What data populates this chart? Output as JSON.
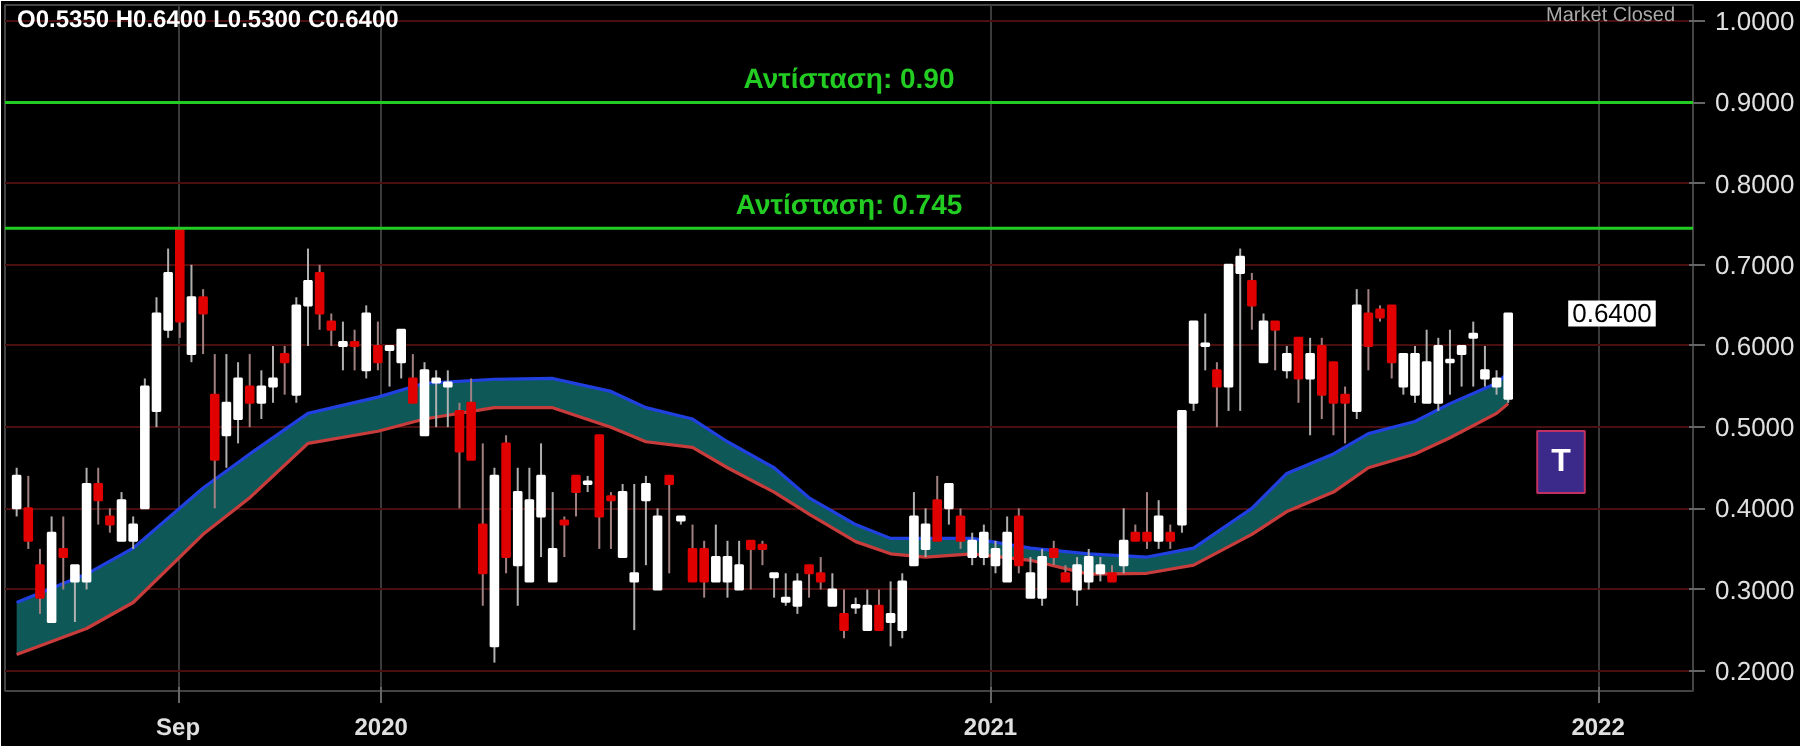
{
  "chart_data": {
    "type": "candlestick",
    "x": [
      "2019-05-27",
      "2019-06-03",
      "2019-06-10",
      "2019-06-17",
      "2019-06-24",
      "2019-07-01",
      "2019-07-08",
      "2019-07-15",
      "2019-07-22",
      "2019-07-29",
      "2019-08-05",
      "2019-08-12",
      "2019-08-19",
      "2019-08-26",
      "2019-09-02",
      "2019-09-09",
      "2019-09-16",
      "2019-09-23",
      "2019-09-30",
      "2019-10-07",
      "2019-10-14",
      "2019-10-21",
      "2019-10-28",
      "2019-11-04",
      "2019-11-11",
      "2019-11-18",
      "2019-11-25",
      "2019-12-02",
      "2019-12-09",
      "2019-12-16",
      "2019-12-23",
      "2019-12-30",
      "2020-01-06",
      "2020-01-13",
      "2020-01-20",
      "2020-01-27",
      "2020-02-03",
      "2020-02-10",
      "2020-02-17",
      "2020-02-24",
      "2020-03-02",
      "2020-03-09",
      "2020-03-16",
      "2020-03-23",
      "2020-03-30",
      "2020-04-06",
      "2020-04-13",
      "2020-04-20",
      "2020-04-27",
      "2020-05-04",
      "2020-05-11",
      "2020-05-18",
      "2020-05-25",
      "2020-06-01",
      "2020-06-08",
      "2020-06-15",
      "2020-06-22",
      "2020-06-29",
      "2020-07-06",
      "2020-07-13",
      "2020-07-20",
      "2020-07-27",
      "2020-08-03",
      "2020-08-10",
      "2020-08-17",
      "2020-08-24",
      "2020-08-31",
      "2020-09-07",
      "2020-09-14",
      "2020-09-21",
      "2020-09-28",
      "2020-10-05",
      "2020-10-12",
      "2020-10-19",
      "2020-10-26",
      "2020-11-02",
      "2020-11-09",
      "2020-11-16",
      "2020-11-23",
      "2020-11-30",
      "2020-12-07",
      "2020-12-14",
      "2020-12-21",
      "2020-12-28",
      "2021-01-04",
      "2021-01-11",
      "2021-01-18",
      "2021-01-25",
      "2021-02-01",
      "2021-02-08",
      "2021-02-15",
      "2021-02-22",
      "2021-03-01",
      "2021-03-08",
      "2021-03-15",
      "2021-03-22",
      "2021-03-29",
      "2021-04-05",
      "2021-04-12",
      "2021-04-19",
      "2021-04-26",
      "2021-05-03",
      "2021-05-10",
      "2021-05-17",
      "2021-05-24",
      "2021-05-31",
      "2021-06-07",
      "2021-06-14",
      "2021-06-21",
      "2021-06-28",
      "2021-07-05",
      "2021-07-12",
      "2021-07-19",
      "2021-07-26",
      "2021-08-02",
      "2021-08-09",
      "2021-08-16",
      "2021-08-23",
      "2021-08-30",
      "2021-09-06",
      "2021-09-13",
      "2021-09-20",
      "2021-09-27",
      "2021-10-04",
      "2021-10-11",
      "2021-10-18",
      "2021-10-25",
      "2021-11-01",
      "2021-11-08"
    ],
    "ohlc": [
      [
        0.4,
        0.45,
        0.39,
        0.44
      ],
      [
        0.4,
        0.44,
        0.35,
        0.36
      ],
      [
        0.33,
        0.35,
        0.27,
        0.29
      ],
      [
        0.26,
        0.39,
        0.26,
        0.37
      ],
      [
        0.35,
        0.39,
        0.3,
        0.34
      ],
      [
        0.31,
        0.33,
        0.26,
        0.33
      ],
      [
        0.31,
        0.45,
        0.3,
        0.43
      ],
      [
        0.43,
        0.45,
        0.38,
        0.41
      ],
      [
        0.39,
        0.4,
        0.37,
        0.38
      ],
      [
        0.36,
        0.42,
        0.36,
        0.41
      ],
      [
        0.36,
        0.39,
        0.35,
        0.38
      ],
      [
        0.4,
        0.56,
        0.4,
        0.55
      ],
      [
        0.52,
        0.66,
        0.5,
        0.64
      ],
      [
        0.62,
        0.72,
        0.61,
        0.69
      ],
      [
        0.745,
        0.745,
        0.61,
        0.63
      ],
      [
        0.59,
        0.7,
        0.58,
        0.66
      ],
      [
        0.66,
        0.67,
        0.59,
        0.64
      ],
      [
        0.54,
        0.59,
        0.4,
        0.46
      ],
      [
        0.49,
        0.59,
        0.45,
        0.53
      ],
      [
        0.51,
        0.58,
        0.48,
        0.56
      ],
      [
        0.55,
        0.59,
        0.5,
        0.53
      ],
      [
        0.53,
        0.57,
        0.51,
        0.55
      ],
      [
        0.55,
        0.6,
        0.53,
        0.56
      ],
      [
        0.59,
        0.6,
        0.54,
        0.58
      ],
      [
        0.54,
        0.66,
        0.53,
        0.65
      ],
      [
        0.65,
        0.72,
        0.6,
        0.68
      ],
      [
        0.69,
        0.7,
        0.62,
        0.64
      ],
      [
        0.63,
        0.64,
        0.6,
        0.62
      ],
      [
        0.6,
        0.63,
        0.57,
        0.605
      ],
      [
        0.605,
        0.62,
        0.57,
        0.6
      ],
      [
        0.57,
        0.65,
        0.56,
        0.64
      ],
      [
        0.6,
        0.63,
        0.57,
        0.58
      ],
      [
        0.595,
        0.6,
        0.55,
        0.6
      ],
      [
        0.58,
        0.62,
        0.56,
        0.62
      ],
      [
        0.56,
        0.59,
        0.53,
        0.53
      ],
      [
        0.49,
        0.58,
        0.49,
        0.57
      ],
      [
        0.555,
        0.57,
        0.5,
        0.56
      ],
      [
        0.55,
        0.57,
        0.5,
        0.555
      ],
      [
        0.52,
        0.53,
        0.4,
        0.47
      ],
      [
        0.53,
        0.56,
        0.46,
        0.46
      ],
      [
        0.38,
        0.48,
        0.28,
        0.32
      ],
      [
        0.23,
        0.45,
        0.21,
        0.44
      ],
      [
        0.48,
        0.49,
        0.32,
        0.34
      ],
      [
        0.33,
        0.45,
        0.28,
        0.42
      ],
      [
        0.31,
        0.45,
        0.31,
        0.41
      ],
      [
        0.39,
        0.48,
        0.34,
        0.44
      ],
      [
        0.31,
        0.42,
        0.31,
        0.35
      ],
      [
        0.385,
        0.39,
        0.34,
        0.38
      ],
      [
        0.44,
        0.44,
        0.39,
        0.42
      ],
      [
        0.43,
        0.44,
        0.42,
        0.43
      ],
      [
        0.49,
        0.49,
        0.35,
        0.39
      ],
      [
        0.415,
        0.42,
        0.35,
        0.41
      ],
      [
        0.34,
        0.43,
        0.34,
        0.42
      ],
      [
        0.31,
        0.43,
        0.25,
        0.32
      ],
      [
        0.41,
        0.44,
        0.33,
        0.43
      ],
      [
        0.3,
        0.4,
        0.3,
        0.39
      ],
      [
        0.44,
        0.44,
        0.32,
        0.43
      ],
      [
        0.385,
        0.39,
        0.38,
        0.39
      ],
      [
        0.35,
        0.38,
        0.31,
        0.31
      ],
      [
        0.35,
        0.36,
        0.29,
        0.31
      ],
      [
        0.31,
        0.38,
        0.31,
        0.34
      ],
      [
        0.31,
        0.36,
        0.29,
        0.34
      ],
      [
        0.3,
        0.36,
        0.3,
        0.33
      ],
      [
        0.36,
        0.36,
        0.3,
        0.35
      ],
      [
        0.355,
        0.36,
        0.33,
        0.35
      ],
      [
        0.315,
        0.32,
        0.29,
        0.32
      ],
      [
        0.285,
        0.32,
        0.28,
        0.29
      ],
      [
        0.28,
        0.32,
        0.27,
        0.31
      ],
      [
        0.33,
        0.33,
        0.29,
        0.32
      ],
      [
        0.32,
        0.34,
        0.3,
        0.31
      ],
      [
        0.28,
        0.32,
        0.28,
        0.3
      ],
      [
        0.27,
        0.3,
        0.24,
        0.25
      ],
      [
        0.278,
        0.29,
        0.27,
        0.28
      ],
      [
        0.25,
        0.3,
        0.25,
        0.28
      ],
      [
        0.28,
        0.3,
        0.25,
        0.25
      ],
      [
        0.26,
        0.31,
        0.23,
        0.27
      ],
      [
        0.25,
        0.32,
        0.24,
        0.31
      ],
      [
        0.33,
        0.42,
        0.33,
        0.39
      ],
      [
        0.35,
        0.4,
        0.34,
        0.38
      ],
      [
        0.41,
        0.44,
        0.36,
        0.36
      ],
      [
        0.4,
        0.43,
        0.38,
        0.43
      ],
      [
        0.39,
        0.4,
        0.35,
        0.36
      ],
      [
        0.34,
        0.37,
        0.33,
        0.36
      ],
      [
        0.34,
        0.38,
        0.33,
        0.37
      ],
      [
        0.33,
        0.36,
        0.32,
        0.35
      ],
      [
        0.31,
        0.39,
        0.31,
        0.37
      ],
      [
        0.39,
        0.4,
        0.32,
        0.33
      ],
      [
        0.29,
        0.34,
        0.29,
        0.32
      ],
      [
        0.29,
        0.35,
        0.28,
        0.34
      ],
      [
        0.35,
        0.36,
        0.33,
        0.34
      ],
      [
        0.32,
        0.33,
        0.31,
        0.31
      ],
      [
        0.3,
        0.34,
        0.28,
        0.33
      ],
      [
        0.31,
        0.35,
        0.3,
        0.34
      ],
      [
        0.32,
        0.34,
        0.31,
        0.33
      ],
      [
        0.32,
        0.33,
        0.31,
        0.31
      ],
      [
        0.33,
        0.4,
        0.32,
        0.36
      ],
      [
        0.37,
        0.38,
        0.36,
        0.36
      ],
      [
        0.37,
        0.42,
        0.35,
        0.36
      ],
      [
        0.36,
        0.41,
        0.35,
        0.39
      ],
      [
        0.37,
        0.38,
        0.35,
        0.36
      ],
      [
        0.38,
        0.52,
        0.37,
        0.52
      ],
      [
        0.53,
        0.63,
        0.52,
        0.63
      ],
      [
        0.6,
        0.64,
        0.57,
        0.6
      ],
      [
        0.57,
        0.58,
        0.5,
        0.55
      ],
      [
        0.55,
        0.7,
        0.52,
        0.7
      ],
      [
        0.69,
        0.72,
        0.52,
        0.71
      ],
      [
        0.68,
        0.69,
        0.62,
        0.65
      ],
      [
        0.58,
        0.64,
        0.58,
        0.63
      ],
      [
        0.63,
        0.63,
        0.57,
        0.62
      ],
      [
        0.57,
        0.6,
        0.56,
        0.59
      ],
      [
        0.61,
        0.61,
        0.53,
        0.56
      ],
      [
        0.56,
        0.61,
        0.49,
        0.59
      ],
      [
        0.6,
        0.61,
        0.51,
        0.54
      ],
      [
        0.58,
        0.58,
        0.49,
        0.53
      ],
      [
        0.54,
        0.55,
        0.48,
        0.53
      ],
      [
        0.52,
        0.67,
        0.51,
        0.65
      ],
      [
        0.64,
        0.67,
        0.57,
        0.6
      ],
      [
        0.645,
        0.65,
        0.63,
        0.635
      ],
      [
        0.65,
        0.65,
        0.56,
        0.58
      ],
      [
        0.55,
        0.59,
        0.54,
        0.59
      ],
      [
        0.54,
        0.6,
        0.53,
        0.59
      ],
      [
        0.53,
        0.62,
        0.53,
        0.58
      ],
      [
        0.53,
        0.61,
        0.52,
        0.6
      ],
      [
        0.58,
        0.62,
        0.54,
        0.58
      ],
      [
        0.59,
        0.6,
        0.55,
        0.6
      ],
      [
        0.61,
        0.63,
        0.55,
        0.615
      ],
      [
        0.56,
        0.6,
        0.55,
        0.57
      ],
      [
        0.55,
        0.57,
        0.54,
        0.56
      ],
      [
        0.535,
        0.64,
        0.53,
        0.64
      ]
    ],
    "series": [
      {
        "type": "line",
        "color": "#2040e0",
        "x": [
          "2019-05-27",
          "2019-07-08",
          "2019-08-05",
          "2019-09-16",
          "2019-10-14",
          "2019-11-18",
          "2019-12-30",
          "2020-01-27",
          "2020-03-09",
          "2020-04-13",
          "2020-05-18",
          "2020-06-08",
          "2020-07-06",
          "2020-07-27",
          "2020-08-24",
          "2020-09-14",
          "2020-10-12",
          "2020-11-02",
          "2020-11-23",
          "2020-12-21",
          "2021-01-25",
          "2021-03-01",
          "2021-04-05",
          "2021-05-03",
          "2021-06-07",
          "2021-06-28",
          "2021-07-26",
          "2021-08-16",
          "2021-09-13",
          "2021-10-04",
          "2021-11-01",
          "2021-11-08"
        ],
        "values": [
          0.284,
          0.319,
          0.351,
          0.425,
          0.467,
          0.517,
          0.537,
          0.554,
          0.559,
          0.56,
          0.544,
          0.524,
          0.51,
          0.482,
          0.45,
          0.413,
          0.38,
          0.363,
          0.363,
          0.363,
          0.351,
          0.344,
          0.34,
          0.351,
          0.4,
          0.443,
          0.467,
          0.492,
          0.507,
          0.529,
          0.554,
          0.567
        ],
        "lower": [
          0.22,
          0.252,
          0.284,
          0.368,
          0.413,
          0.48,
          0.495,
          0.51,
          0.524,
          0.524,
          0.5,
          0.482,
          0.475,
          0.45,
          0.42,
          0.393,
          0.359,
          0.344,
          0.34,
          0.344,
          0.336,
          0.319,
          0.32,
          0.33,
          0.368,
          0.396,
          0.42,
          0.45,
          0.467,
          0.487,
          0.517,
          0.529
        ],
        "upper": [
          0.284,
          0.319,
          0.351,
          0.425,
          0.467,
          0.517,
          0.537,
          0.554,
          0.559,
          0.56,
          0.544,
          0.524,
          0.51,
          0.482,
          0.45,
          0.413,
          0.38,
          0.363,
          0.363,
          0.363,
          0.351,
          0.344,
          0.34,
          0.351,
          0.4,
          0.443,
          0.467,
          0.492,
          0.507,
          0.529,
          0.554,
          0.567
        ]
      },
      {
        "type": "line",
        "color": "#c83c3c",
        "x": [
          "2019-05-27",
          "2019-07-08",
          "2019-08-05",
          "2019-09-16",
          "2019-10-14",
          "2019-11-18",
          "2019-12-30",
          "2020-01-27",
          "2020-03-09",
          "2020-04-13",
          "2020-05-18",
          "2020-06-08",
          "2020-07-06",
          "2020-07-27",
          "2020-08-24",
          "2020-09-14",
          "2020-10-12",
          "2020-11-02",
          "2020-11-23",
          "2020-12-21",
          "2021-01-25",
          "2021-03-01",
          "2021-04-05",
          "2021-05-03",
          "2021-06-07",
          "2021-06-28",
          "2021-07-26",
          "2021-08-16",
          "2021-09-13",
          "2021-10-04",
          "2021-11-01",
          "2021-11-08"
        ],
        "values": [
          0.22,
          0.252,
          0.284,
          0.368,
          0.413,
          0.48,
          0.495,
          0.51,
          0.524,
          0.524,
          0.5,
          0.482,
          0.475,
          0.45,
          0.42,
          0.393,
          0.359,
          0.344,
          0.34,
          0.344,
          0.336,
          0.319,
          0.32,
          0.33,
          0.368,
          0.396,
          0.42,
          0.45,
          0.467,
          0.487,
          0.517,
          0.529
        ]
      }
    ],
    "xlim": [
      "2019-05-20",
      "2022-02-27"
    ],
    "xticks": [
      {
        "value": "2019-09-01",
        "label": "Sep"
      },
      {
        "value": "2020-01-01",
        "label": "2020"
      },
      {
        "value": "2021-01-01",
        "label": "2021"
      },
      {
        "value": "2022-01-01",
        "label": "2022"
      }
    ],
    "ylim": [
      0.175,
      1.02
    ],
    "yticks": [
      {
        "value": 0.2,
        "label": "0.2000"
      },
      {
        "value": 0.3,
        "label": "0.3000"
      },
      {
        "value": 0.4,
        "label": "0.4000"
      },
      {
        "value": 0.5,
        "label": "0.5000"
      },
      {
        "value": 0.6,
        "label": "0.6000"
      },
      {
        "value": 0.7,
        "label": "0.7000"
      },
      {
        "value": 0.8,
        "label": "0.8000"
      },
      {
        "value": 0.9,
        "label": "0.9000"
      },
      {
        "value": 1.0,
        "label": "1.0000"
      }
    ],
    "ref_lines": [
      {
        "axis": "y",
        "value": 0.9,
        "label": "Αντίσταση: 0.90",
        "color": "#22cc22"
      },
      {
        "axis": "y",
        "value": 0.745,
        "label": "Αντίσταση: 0.745",
        "color": "#22cc22"
      }
    ],
    "annotations": [
      "O0.5350  H0.6400  L0.5300  C0.6400",
      "Market Closed",
      {
        "text": "0.6400",
        "x": "2021-11-08",
        "y": 0.64
      },
      "T"
    ],
    "grid": true
  }
}
